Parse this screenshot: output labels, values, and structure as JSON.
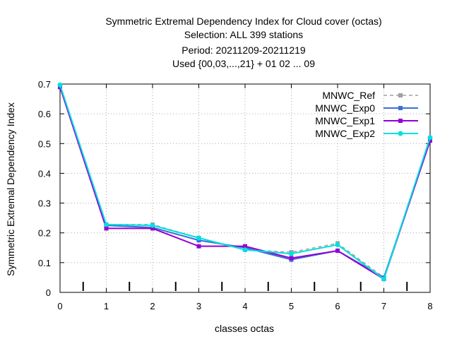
{
  "chart_data": {
    "type": "line",
    "title_lines": [
      "Symmetric Extremal Dependency Index  for Cloud cover (octas)",
      "Selection: ALL    399 stations",
      "Period: 20211209-20211219",
      "Used {00,03,...,21} + 01 02 ... 09"
    ],
    "xlabel": "classes octas",
    "ylabel": "Symmetric Extremal Dependency Index",
    "xlim": [
      0,
      8
    ],
    "ylim": [
      0,
      0.7
    ],
    "x_ticks": [
      "0",
      "1",
      "2",
      "3",
      "4",
      "5",
      "6",
      "7",
      "8"
    ],
    "y_ticks": [
      "0",
      "0.1",
      "0.2",
      "0.3",
      "0.4",
      "0.5",
      "0.6",
      "0.7"
    ],
    "grid": true,
    "legend_position": "top-right",
    "x": [
      0,
      1,
      2,
      3,
      4,
      5,
      6,
      7,
      8
    ],
    "series": [
      {
        "name": "MNWC_Ref",
        "color": "#a0a0a0",
        "dash": true,
        "values": [
          0.695,
          0.228,
          0.228,
          0.183,
          0.143,
          0.135,
          0.165,
          0.05,
          0.518
        ]
      },
      {
        "name": "MNWC_Exp0",
        "color": "#3b6fd6",
        "dash": false,
        "values": [
          0.69,
          0.225,
          0.218,
          0.175,
          0.15,
          0.11,
          0.14,
          0.05,
          0.51
        ]
      },
      {
        "name": "MNWC_Exp1",
        "color": "#9400d3",
        "dash": false,
        "values": [
          0.69,
          0.215,
          0.215,
          0.155,
          0.155,
          0.115,
          0.14,
          0.045,
          0.51
        ]
      },
      {
        "name": "MNWC_Exp2",
        "color": "#00e0e0",
        "dash": false,
        "values": [
          0.697,
          0.228,
          0.225,
          0.183,
          0.143,
          0.13,
          0.16,
          0.045,
          0.52
        ]
      }
    ],
    "boundary_marks": [
      0.5,
      1.5,
      2.5,
      3.5,
      4.5,
      5.5,
      6.5,
      7.5
    ]
  }
}
